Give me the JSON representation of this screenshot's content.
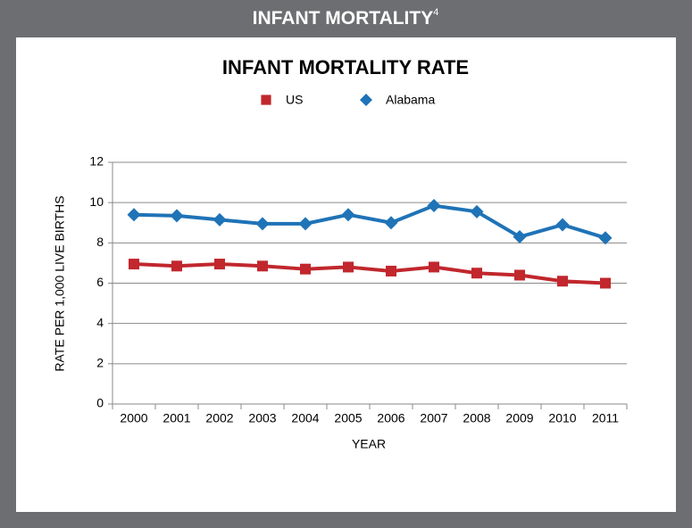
{
  "header": {
    "title": "INFANT MORTALITY",
    "superscript": "4"
  },
  "chart_data": {
    "type": "line",
    "title": "INFANT MORTALITY RATE",
    "x_label": "YEAR",
    "y_label": "RATE PER 1,000 LIVE BIRTHS",
    "categories": [
      "2000",
      "2001",
      "2002",
      "2003",
      "2004",
      "2005",
      "2006",
      "2007",
      "2008",
      "2009",
      "2010",
      "2011"
    ],
    "series": [
      {
        "name": "US",
        "color": "#c1272d",
        "marker": "square",
        "values": [
          6.95,
          6.85,
          6.95,
          6.85,
          6.7,
          6.8,
          6.6,
          6.8,
          6.5,
          6.4,
          6.1,
          6.0
        ]
      },
      {
        "name": "Alabama",
        "color": "#1f73b7",
        "marker": "diamond",
        "values": [
          9.4,
          9.35,
          9.15,
          8.95,
          8.95,
          9.4,
          9.0,
          9.85,
          9.55,
          8.3,
          8.9,
          8.25
        ]
      }
    ],
    "ylim": [
      0,
      12
    ],
    "yticks": [
      0,
      2,
      4,
      6,
      8,
      10,
      12
    ],
    "grid": true,
    "legend": "top"
  }
}
